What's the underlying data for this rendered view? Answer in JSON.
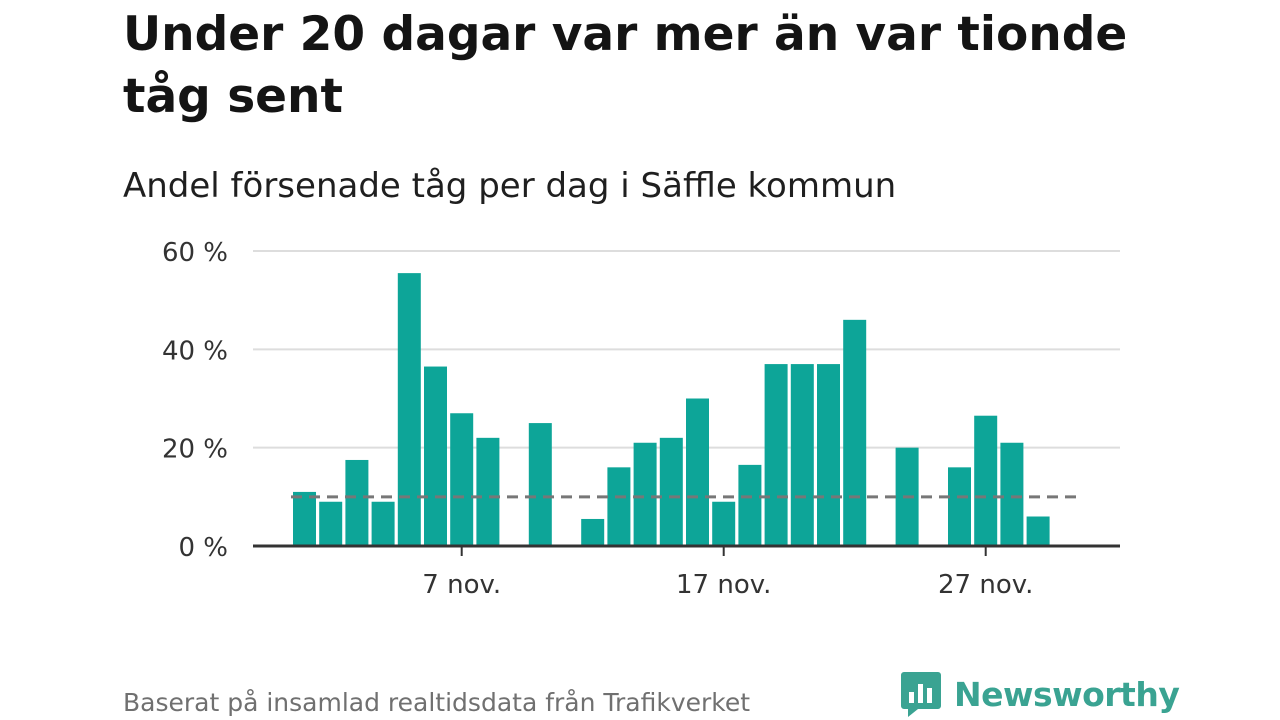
{
  "title": "Under 20 dagar var mer än var tionde tåg sent",
  "subtitle": "Andel försenade tåg per dag i Säffle kommun",
  "footer": "Baserat på insamlad realtidsdata från Trafikverket",
  "brand": {
    "name": "Newsworthy",
    "icon": "newsworthy-logo-icon",
    "color": "#3aa392"
  },
  "colors": {
    "bar": "#0da598",
    "reference_line": "#777777",
    "grid": "#dddddd",
    "axis": "#333333"
  },
  "chart_data": {
    "type": "bar",
    "x": [
      "1 nov.",
      "2 nov.",
      "3 nov.",
      "4 nov.",
      "5 nov.",
      "6 nov.",
      "7 nov.",
      "8 nov.",
      "9 nov.",
      "10 nov.",
      "11 nov.",
      "12 nov.",
      "13 nov.",
      "14 nov.",
      "15 nov.",
      "16 nov.",
      "17 nov.",
      "18 nov.",
      "19 nov.",
      "20 nov.",
      "21 nov.",
      "22 nov.",
      "23 nov.",
      "24 nov.",
      "25 nov.",
      "26 nov.",
      "27 nov.",
      "28 nov.",
      "29 nov.",
      "30 nov."
    ],
    "values": [
      11,
      9,
      17.5,
      9,
      55.5,
      36.5,
      27,
      22,
      0,
      25,
      0,
      5.5,
      16,
      21,
      22,
      30,
      9,
      16.5,
      37,
      37,
      37,
      46,
      0,
      20,
      0,
      16,
      26.5,
      21,
      6,
      0
    ],
    "reference_value": 10,
    "ylim": [
      0,
      60
    ],
    "yticks": [
      0,
      20,
      40,
      60
    ],
    "ytick_labels": [
      "0 %",
      "20 %",
      "40 %",
      "60 %"
    ],
    "xticks": [
      "7 nov.",
      "17 nov.",
      "27 nov."
    ],
    "xlabel": "",
    "ylabel": "",
    "grid": true
  }
}
